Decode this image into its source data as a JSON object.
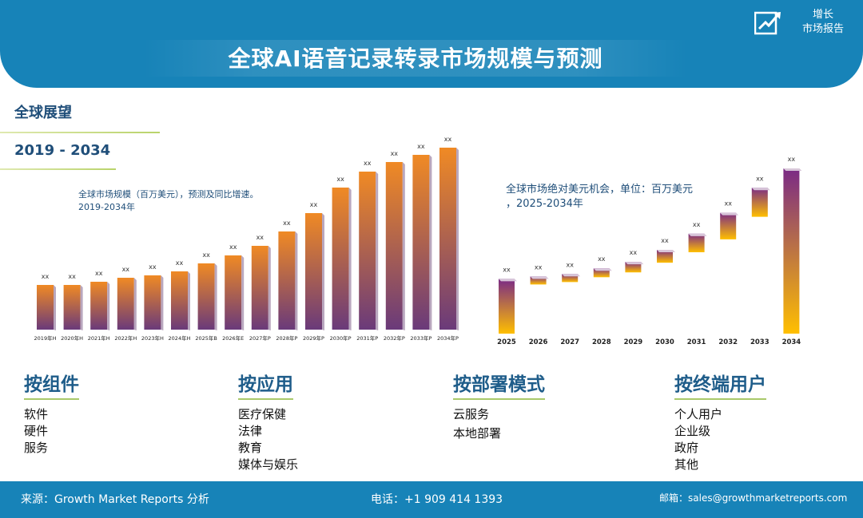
{
  "header": {
    "title": "全球AI语音记录转录市场规模与预测",
    "logo_text_line1": "增长",
    "logo_text_line2": "市场报告",
    "logo_icon": "growth-arrow-icon"
  },
  "outlook": {
    "label": "全球展望",
    "years": "2019 - 2034"
  },
  "chart_data": [
    {
      "type": "bar",
      "title": "全球市场规模（百万美元），预测及同比增速。",
      "subtitle": "2019-2034年",
      "categories": [
        "2019年H",
        "2020年H",
        "2021年H",
        "2022年H",
        "2023年H",
        "2024年H",
        "2025年B",
        "2026年E",
        "2027年P",
        "2028年P",
        "2029年P",
        "2030年P",
        "2031年P",
        "2032年P",
        "2033年P",
        "2034年P"
      ],
      "values": [
        56,
        56,
        60,
        65,
        68,
        73,
        83,
        93,
        105,
        123,
        146,
        178,
        198,
        210,
        219,
        228
      ],
      "data_labels": [
        "xx",
        "xx",
        "xx",
        "xx",
        "xx",
        "xx",
        "xx",
        "xx",
        "xx",
        "xx",
        "xx",
        "xx",
        "xx",
        "xx",
        "xx",
        "xx"
      ],
      "ylim": [
        0,
        240
      ],
      "colors": {
        "top": "#f08a24",
        "bottom": "#6a3a7a"
      }
    },
    {
      "type": "bar",
      "title": "全球市场绝对美元机会，单位：百万美元",
      "subtitle": "，2025-2034年",
      "categories": [
        "2025",
        "2026",
        "2027",
        "2028",
        "2029",
        "2030",
        "2031",
        "2032",
        "2033",
        "2034"
      ],
      "ranges": [
        [
          0,
          68
        ],
        [
          61,
          71
        ],
        [
          64,
          74
        ],
        [
          70,
          81
        ],
        [
          76,
          89
        ],
        [
          88,
          104
        ],
        [
          101,
          124
        ],
        [
          117,
          150
        ],
        [
          145,
          181
        ],
        [
          0,
          205
        ]
      ],
      "data_labels": [
        "xx",
        "xx",
        "xx",
        "xx",
        "xx",
        "xx",
        "xx",
        "xx",
        "xx",
        "xx"
      ],
      "ylim": [
        0,
        210
      ],
      "colors": {
        "top": "#7a2a86",
        "bottom": "#ffbf00"
      }
    }
  ],
  "segments": [
    {
      "heading": "按组件",
      "items": [
        "软件",
        "硬件",
        "服务"
      ]
    },
    {
      "heading": "按应用",
      "items": [
        "医疗保健",
        "法律",
        "教育",
        "媒体与娱乐"
      ]
    },
    {
      "heading": "按部署模式",
      "items": [
        "云服务",
        "本地部署"
      ]
    },
    {
      "heading": "按终端用户",
      "items": [
        "个人用户",
        "企业级",
        "政府",
        "其他"
      ]
    }
  ],
  "footer": {
    "source": "来源：Growth Market Reports 分析",
    "phone": "电话：+1 909 414 1393",
    "email": "邮箱：sales@growthmarketreports.com"
  }
}
